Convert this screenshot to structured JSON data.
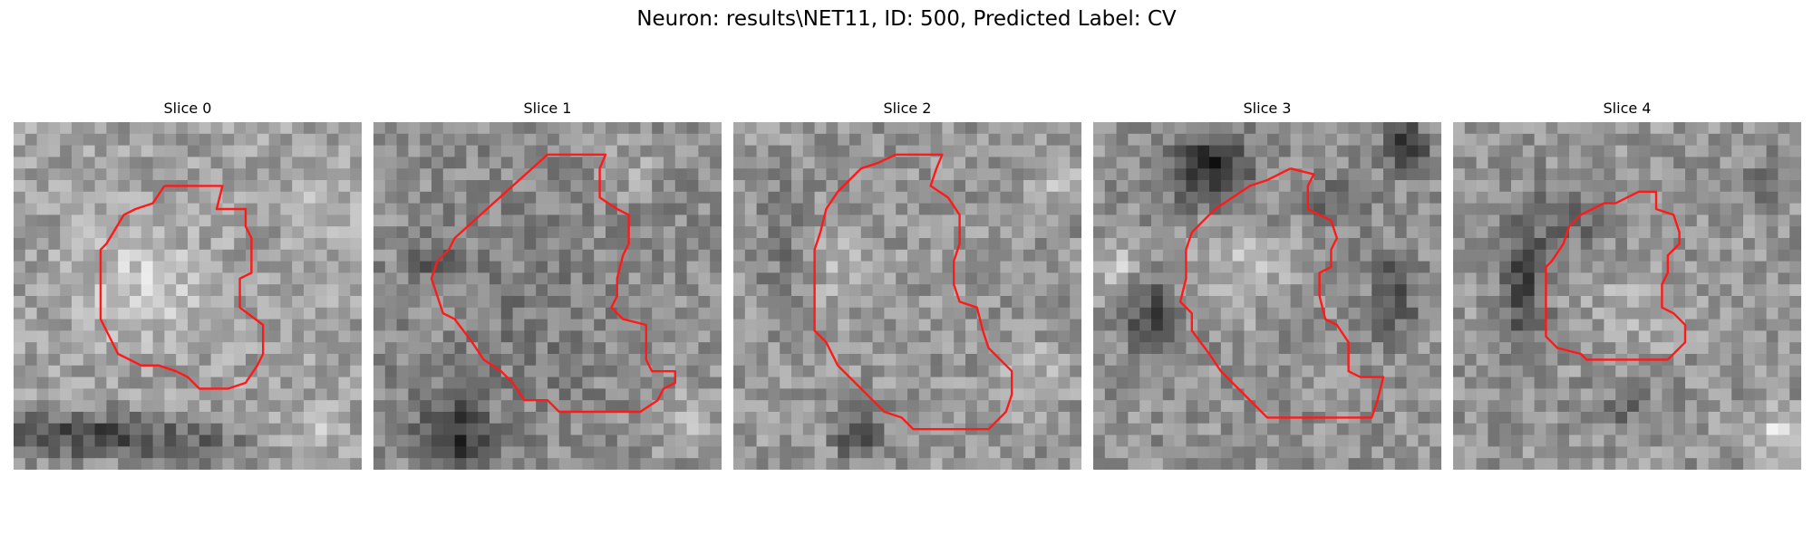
{
  "figure": {
    "suptitle": "Neuron: results\\NET11, ID: 500, Predicted Label: CV"
  },
  "panels": [
    {
      "title": "Slice 0"
    },
    {
      "title": "Slice 1"
    },
    {
      "title": "Slice 2"
    },
    {
      "title": "Slice 3"
    },
    {
      "title": "Slice 4"
    }
  ],
  "style": {
    "contour_color": "#ff1a1a",
    "colormap": "gray"
  }
}
